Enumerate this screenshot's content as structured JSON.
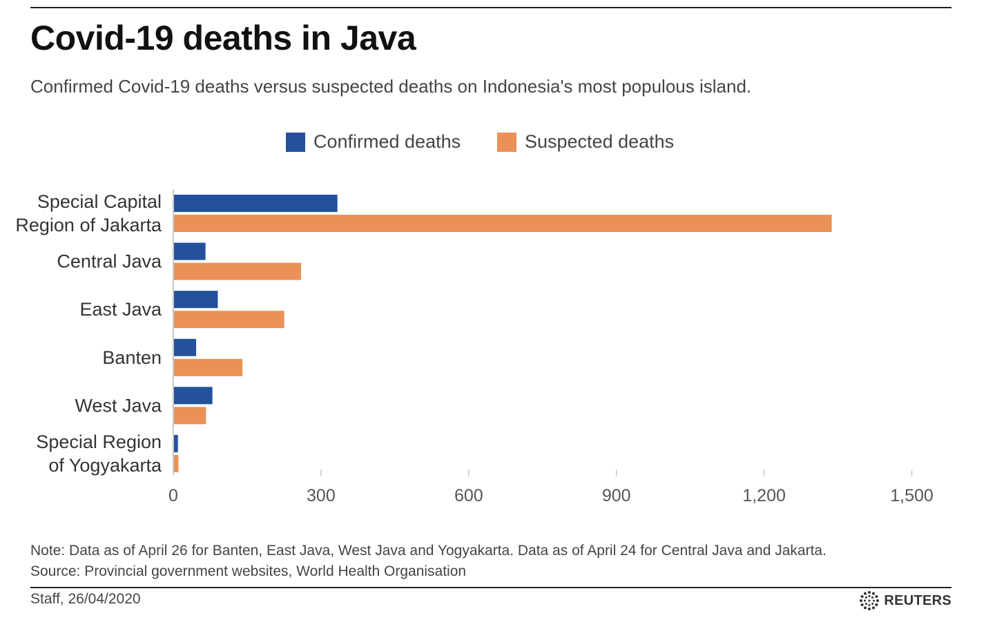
{
  "header": {
    "title": "Covid-19 deaths in Java",
    "subtitle": "Confirmed Covid-19 deaths versus suspected deaths on Indonesia's most populous island."
  },
  "legend": {
    "items": [
      {
        "label": "Confirmed deaths",
        "color": "#23519c"
      },
      {
        "label": "Suspected deaths",
        "color": "#eb9157"
      }
    ]
  },
  "chart_data": {
    "type": "bar",
    "orientation": "horizontal",
    "title": "Covid-19 deaths in Java",
    "xlabel": "",
    "ylabel": "",
    "xlim": [
      0,
      1500
    ],
    "ticks": [
      0,
      300,
      600,
      900,
      1200,
      1500
    ],
    "tick_labels": [
      "0",
      "300",
      "600",
      "900",
      "1,200",
      "1,500"
    ],
    "categories": [
      [
        "Special Capital",
        "Region of Jakarta"
      ],
      [
        "Central Java"
      ],
      [
        "East Java"
      ],
      [
        "Banten"
      ],
      [
        "West Java"
      ],
      [
        "Special Region",
        "of Yogyakarta"
      ]
    ],
    "series": [
      {
        "name": "Confirmed deaths",
        "color": "#23519c",
        "values": [
          332,
          64,
          89,
          45,
          78,
          8
        ]
      },
      {
        "name": "Suspected deaths",
        "color": "#eb9157",
        "values": [
          1336,
          258,
          224,
          139,
          65,
          9
        ]
      }
    ],
    "legend_position": "top-center",
    "grid": false
  },
  "footer": {
    "note": "Note: Data as of April 26 for Banten, East Java, West Java and Yogyakarta. Data as of April 24 for Central Java and Jakarta.",
    "source": "Source: Provincial government websites, World Health Organisation",
    "byline": "Staff, 26/04/2020",
    "brand": "REUTERS"
  }
}
